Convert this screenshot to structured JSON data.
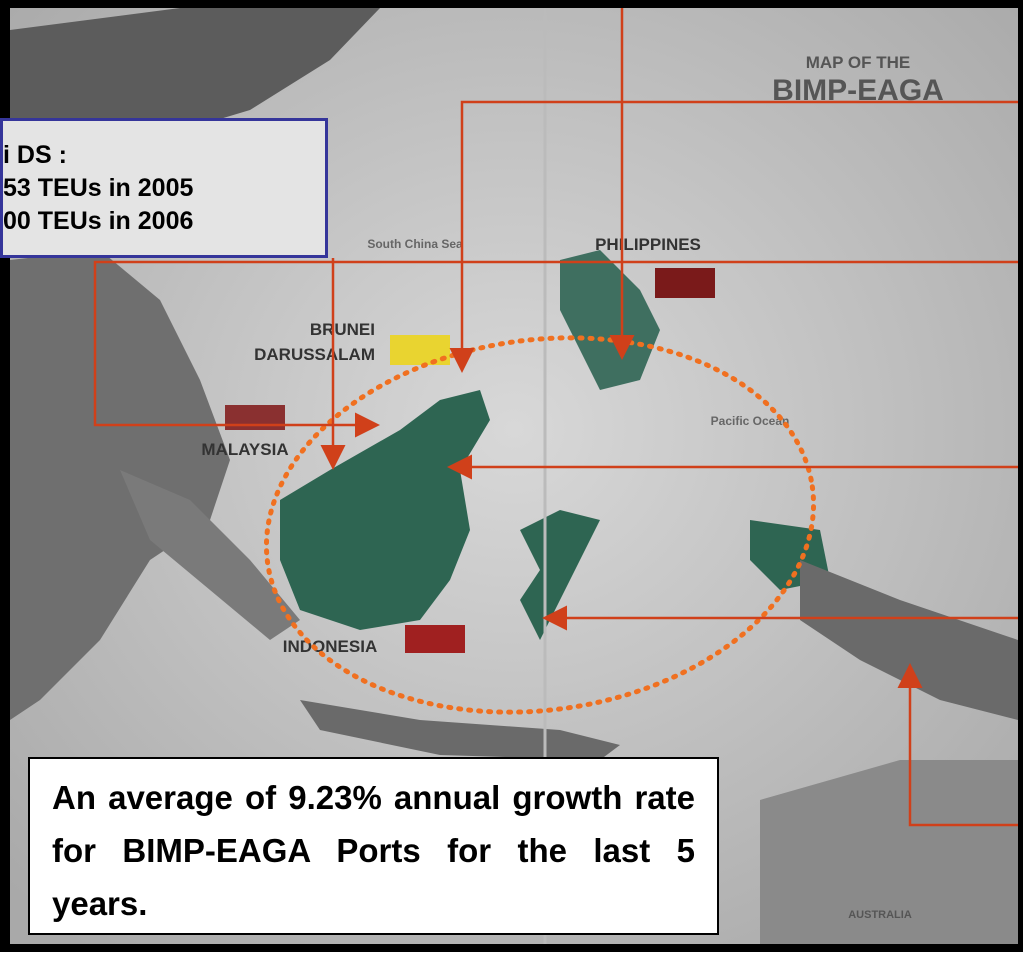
{
  "map": {
    "title_line1": "MAP OF THE",
    "title_line2": "BIMP-EAGA",
    "labels": {
      "sea": "South China Sea",
      "philippines": "PHILIPPINES",
      "brunei_line1": "BRUNEI",
      "brunei_line2": "DARUSSALAM",
      "malaysia": "MALAYSIA",
      "indonesia": "INDONESIA",
      "ocean": "Pacific Ocean",
      "australia": "AUSTRALIA"
    }
  },
  "info_box": {
    "lines": [
      "i DS :",
      "53 TEUs in 2005",
      "00 TEUs in 2006"
    ]
  },
  "summary_box": {
    "text": "An average of 9.23% annual growth rate for BIMP-EAGA Ports for the last 5 years."
  }
}
